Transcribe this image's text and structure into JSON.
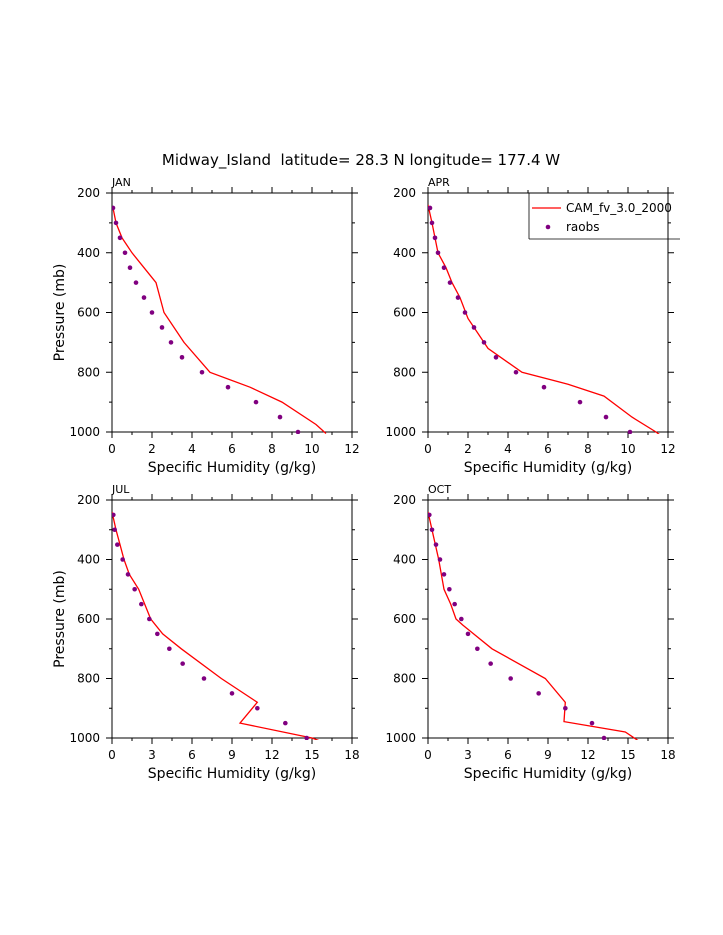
{
  "figure_title": "Midway_Island  latitude= 28.3 N longitude= 177.4 W",
  "colors": {
    "model_line": "#ff0000",
    "obs_marker": "#800080",
    "axes": "#000000"
  },
  "legend": {
    "model_label": "CAM_fv_3.0_2000",
    "obs_label": "raobs",
    "placement": "top-right of APR panel"
  },
  "chart_data": [
    {
      "type": "line",
      "title": "JAN",
      "xlabel": "Specific Humidity (g/kg)",
      "ylabel": "Pressure (mb)",
      "xlim": [
        0,
        12
      ],
      "ylim": [
        1000,
        200
      ],
      "y_inverted": true,
      "xticks": [
        0,
        2,
        4,
        6,
        8,
        10,
        12
      ],
      "yticks": [
        200,
        400,
        600,
        800,
        1000
      ],
      "series": [
        {
          "name": "CAM_fv_3.0_2000",
          "kind": "line",
          "x": [
            0.05,
            0.2,
            0.5,
            1.0,
            1.6,
            2.2,
            2.6,
            3.6,
            4.9,
            6.9,
            8.5,
            10.2,
            10.7
          ],
          "y": [
            250,
            300,
            350,
            400,
            450,
            500,
            600,
            700,
            800,
            850,
            900,
            975,
            1005
          ]
        },
        {
          "name": "raobs",
          "kind": "scatter",
          "x": [
            0.05,
            0.2,
            0.4,
            0.65,
            0.9,
            1.2,
            1.6,
            2.0,
            2.5,
            2.95,
            3.5,
            4.5,
            5.8,
            7.2,
            8.4,
            9.3
          ],
          "y": [
            250,
            300,
            350,
            400,
            450,
            500,
            550,
            600,
            650,
            700,
            750,
            800,
            850,
            900,
            950,
            1000
          ]
        }
      ]
    },
    {
      "type": "line",
      "title": "APR",
      "xlabel": "Specific Humidity (g/kg)",
      "ylabel": "",
      "xlim": [
        0,
        12
      ],
      "ylim": [
        1000,
        200
      ],
      "y_inverted": true,
      "xticks": [
        0,
        2,
        4,
        6,
        8,
        10,
        12
      ],
      "yticks": [
        200,
        400,
        600,
        800,
        1000
      ],
      "series": [
        {
          "name": "CAM_fv_3.0_2000",
          "kind": "line",
          "x": [
            0.0,
            0.2,
            0.5,
            0.9,
            1.2,
            1.6,
            2.0,
            3.0,
            4.7,
            7.0,
            8.8,
            10.2,
            11.4,
            11.8
          ],
          "y": [
            240,
            300,
            400,
            450,
            500,
            550,
            620,
            720,
            800,
            840,
            880,
            950,
            1000,
            1020
          ]
        },
        {
          "name": "raobs",
          "kind": "scatter",
          "x": [
            0.1,
            0.2,
            0.35,
            0.5,
            0.8,
            1.1,
            1.5,
            1.85,
            2.3,
            2.8,
            3.4,
            4.4,
            5.8,
            7.6,
            8.9,
            10.1
          ],
          "y": [
            250,
            300,
            350,
            400,
            450,
            500,
            550,
            600,
            650,
            700,
            750,
            800,
            850,
            900,
            950,
            1000
          ]
        }
      ]
    },
    {
      "type": "line",
      "title": "JUL",
      "xlabel": "Specific Humidity (g/kg)",
      "ylabel": "Pressure (mb)",
      "xlim": [
        0,
        18
      ],
      "ylim": [
        1000,
        200
      ],
      "y_inverted": true,
      "xticks": [
        0,
        3,
        6,
        9,
        12,
        15,
        18
      ],
      "yticks": [
        200,
        400,
        600,
        800,
        1000
      ],
      "series": [
        {
          "name": "CAM_fv_3.0_2000",
          "kind": "line",
          "x": [
            0.0,
            0.3,
            0.6,
            0.9,
            1.3,
            2.0,
            2.9,
            3.8,
            5.2,
            8.2,
            10.9,
            9.6,
            15.0,
            15.9
          ],
          "y": [
            240,
            300,
            350,
            400,
            450,
            500,
            600,
            650,
            700,
            800,
            880,
            950,
            1000,
            1015
          ]
        },
        {
          "name": "raobs",
          "kind": "scatter",
          "x": [
            0.1,
            0.2,
            0.4,
            0.8,
            1.2,
            1.7,
            2.2,
            2.8,
            3.4,
            4.3,
            5.3,
            6.9,
            9.0,
            10.9,
            13.0,
            14.6
          ],
          "y": [
            250,
            300,
            350,
            400,
            450,
            500,
            550,
            600,
            650,
            700,
            750,
            800,
            850,
            900,
            950,
            1000
          ]
        }
      ]
    },
    {
      "type": "line",
      "title": "OCT",
      "xlabel": "Specific Humidity (g/kg)",
      "ylabel": "",
      "xlim": [
        0,
        18
      ],
      "ylim": [
        1000,
        200
      ],
      "y_inverted": true,
      "xticks": [
        0,
        3,
        6,
        9,
        12,
        15,
        18
      ],
      "yticks": [
        200,
        400,
        600,
        800,
        1000
      ],
      "series": [
        {
          "name": "CAM_fv_3.0_2000",
          "kind": "line",
          "x": [
            0.0,
            0.3,
            0.8,
            1.2,
            1.7,
            2.1,
            2.6,
            4.8,
            8.8,
            10.3,
            10.2,
            14.8,
            15.8
          ],
          "y": [
            240,
            300,
            400,
            500,
            550,
            600,
            620,
            700,
            800,
            880,
            945,
            980,
            1010
          ]
        },
        {
          "name": "raobs",
          "kind": "scatter",
          "x": [
            0.1,
            0.3,
            0.6,
            0.9,
            1.2,
            1.6,
            2.0,
            2.5,
            3.0,
            3.7,
            4.7,
            6.2,
            8.3,
            10.3,
            12.3,
            13.2
          ],
          "y": [
            250,
            300,
            350,
            400,
            450,
            500,
            550,
            600,
            650,
            700,
            750,
            800,
            850,
            900,
            950,
            1000
          ]
        }
      ]
    }
  ]
}
